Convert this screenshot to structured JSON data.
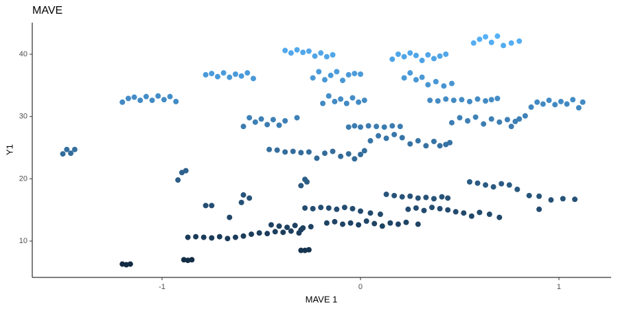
{
  "chart_data": {
    "type": "scatter",
    "title": "MAVE",
    "x_label": "MAVE 1",
    "y_label": "Y1",
    "xlim": [
      -1.654,
      1.263
    ],
    "ylim": [
      4.16,
      45.07
    ],
    "xticks": [
      -1,
      0,
      1
    ],
    "yticks": [
      10,
      20,
      30,
      40
    ],
    "grid": false,
    "color_scale": {
      "low": "#132B43",
      "high": "#56B1F7"
    },
    "x": [
      -1.5,
      -1.48,
      -1.46,
      -1.44,
      -1.2,
      -1.17,
      -1.14,
      -1.11,
      -1.08,
      -1.05,
      -1.02,
      -0.99,
      -0.96,
      -0.93,
      -0.78,
      -0.75,
      -0.72,
      -0.69,
      -0.66,
      -0.63,
      -0.6,
      -0.57,
      -0.54,
      -0.38,
      -0.35,
      -0.32,
      -0.29,
      -0.26,
      -0.23,
      -0.2,
      -0.17,
      -0.14,
      -0.24,
      -0.21,
      -0.18,
      -0.15,
      -0.12,
      -0.09,
      -0.06,
      -0.03,
      0.0,
      -0.19,
      -0.16,
      -0.13,
      -0.1,
      -0.07,
      -0.04,
      -0.01,
      0.02,
      -0.59,
      -0.56,
      -0.53,
      -0.5,
      -0.47,
      -0.44,
      -0.41,
      -0.38,
      -0.32,
      -0.46,
      -0.42,
      -0.38,
      -0.34,
      -0.3,
      -0.26,
      -0.22,
      -0.18,
      -0.14,
      -0.1,
      -0.06,
      -0.03,
      0.0,
      0.02,
      -0.06,
      -0.03,
      0.0,
      0.04,
      0.08,
      0.12,
      0.16,
      0.2,
      0.05,
      0.09,
      0.13,
      0.17,
      0.21,
      0.25,
      0.29,
      0.33,
      0.37,
      0.4,
      0.43,
      0.45,
      0.16,
      0.19,
      0.22,
      0.25,
      0.28,
      0.31,
      0.34,
      0.37,
      0.4,
      0.43,
      0.22,
      0.25,
      0.28,
      0.31,
      0.34,
      0.38,
      0.42,
      0.46,
      0.35,
      0.39,
      0.43,
      0.47,
      0.51,
      0.55,
      0.59,
      0.63,
      0.66,
      0.69,
      0.46,
      0.5,
      0.54,
      0.58,
      0.62,
      0.66,
      0.7,
      0.74,
      0.76,
      0.78,
      0.8,
      0.83,
      0.86,
      0.89,
      0.92,
      0.95,
      0.98,
      1.01,
      1.04,
      1.07,
      1.1,
      1.12,
      0.57,
      0.6,
      0.63,
      0.66,
      0.69,
      0.72,
      0.76,
      0.8,
      -1.2,
      -1.18,
      -1.16,
      -0.89,
      -0.87,
      -0.85,
      -0.87,
      -0.83,
      -0.79,
      -0.75,
      -0.71,
      -0.67,
      -0.63,
      -0.59,
      -0.55,
      -0.51,
      -0.47,
      -0.43,
      -0.39,
      -0.35,
      -0.31,
      -0.3,
      -0.45,
      -0.41,
      -0.37,
      -0.33,
      -0.29,
      -0.25,
      -0.3,
      -0.28,
      -0.26,
      -0.17,
      -0.13,
      -0.09,
      -0.05,
      -0.01,
      0.03,
      0.07,
      0.11,
      0.15,
      0.19,
      0.23,
      0.29,
      -0.28,
      -0.24,
      -0.2,
      -0.16,
      -0.12,
      -0.08,
      -0.04,
      0.0,
      0.05,
      0.1,
      0.13,
      0.17,
      0.21,
      0.25,
      0.29,
      0.33,
      0.37,
      0.41,
      0.44,
      0.24,
      0.28,
      0.32,
      0.36,
      0.4,
      0.44,
      0.48,
      0.52,
      0.56,
      0.6,
      0.65,
      0.7,
      0.55,
      0.59,
      0.63,
      0.67,
      0.71,
      0.75,
      0.79,
      0.85,
      0.9,
      0.96,
      1.02,
      1.08,
      -0.92,
      -0.9,
      -0.88,
      -0.78,
      -0.75,
      -0.66,
      -0.59,
      -0.56,
      -0.6,
      -0.28,
      -0.3,
      -0.27,
      0.9
    ],
    "values": [
      24.0,
      24.7,
      24.1,
      24.7,
      32.3,
      32.9,
      33.1,
      32.6,
      33.2,
      32.6,
      33.3,
      32.7,
      33.2,
      32.4,
      36.7,
      36.9,
      36.4,
      37.0,
      36.3,
      36.8,
      36.5,
      37.0,
      36.1,
      40.6,
      40.2,
      40.7,
      40.3,
      40.5,
      39.7,
      40.2,
      39.6,
      39.9,
      36.2,
      37.2,
      35.9,
      36.6,
      37.2,
      35.8,
      36.7,
      36.9,
      36.8,
      32.1,
      33.3,
      32.4,
      32.8,
      32.1,
      33.0,
      32.3,
      32.6,
      28.4,
      29.8,
      29.1,
      29.6,
      28.7,
      29.5,
      28.6,
      29.3,
      29.8,
      24.7,
      24.6,
      24.3,
      24.4,
      24.2,
      24.3,
      23.3,
      24.1,
      24.4,
      23.6,
      24.0,
      23.2,
      23.9,
      24.5,
      28.3,
      28.5,
      28.3,
      28.5,
      28.4,
      28.3,
      28.5,
      28.4,
      26.1,
      26.9,
      26.5,
      27.1,
      26.6,
      25.6,
      26.1,
      25.3,
      26.0,
      25.3,
      25.5,
      25.8,
      39.2,
      40.0,
      39.6,
      40.2,
      39.8,
      39.0,
      39.9,
      39.3,
      39.7,
      40.0,
      36.2,
      37.0,
      35.9,
      36.3,
      35.1,
      35.6,
      34.9,
      35.3,
      32.6,
      32.5,
      32.8,
      32.6,
      32.7,
      32.4,
      32.8,
      32.5,
      32.7,
      32.9,
      29.0,
      29.8,
      29.3,
      29.9,
      28.8,
      29.6,
      29.1,
      29.5,
      28.4,
      29.2,
      29.6,
      30.1,
      31.5,
      32.3,
      32.0,
      32.6,
      31.9,
      32.4,
      32.0,
      32.7,
      31.4,
      32.3,
      41.8,
      42.4,
      42.8,
      41.9,
      42.9,
      41.4,
      41.8,
      42.1,
      6.3,
      6.2,
      6.3,
      7.0,
      6.9,
      7.0,
      10.6,
      10.7,
      10.6,
      10.5,
      10.7,
      10.4,
      10.6,
      10.8,
      11.1,
      11.3,
      11.2,
      11.5,
      11.4,
      11.6,
      11.3,
      11.8,
      12.6,
      12.4,
      12.2,
      12.5,
      12.1,
      12.3,
      8.5,
      8.5,
      8.6,
      12.9,
      13.1,
      12.7,
      12.9,
      12.6,
      13.2,
      12.8,
      12.4,
      12.9,
      12.7,
      13.0,
      12.7,
      15.3,
      15.2,
      15.4,
      15.3,
      15.1,
      15.4,
      15.2,
      14.8,
      14.5,
      14.3,
      17.5,
      17.3,
      17.1,
      17.2,
      16.9,
      17.0,
      16.8,
      17.1,
      16.9,
      15.1,
      15.3,
      14.9,
      15.4,
      15.2,
      15.0,
      14.7,
      14.5,
      14.0,
      14.6,
      14.3,
      13.8,
      19.5,
      19.3,
      19.0,
      18.7,
      19.2,
      19.0,
      18.3,
      17.3,
      17.2,
      16.6,
      16.8,
      16.7,
      19.8,
      21.0,
      21.3,
      15.7,
      15.7,
      13.8,
      17.4,
      16.9,
      16.2,
      19.9,
      18.9,
      19.5,
      15.1
    ]
  }
}
